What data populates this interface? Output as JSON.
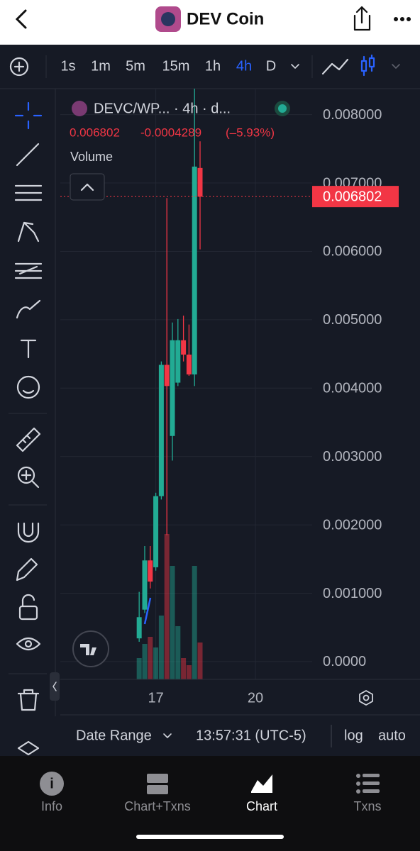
{
  "header": {
    "title": "DEV Coin"
  },
  "toolbar": {
    "intervals": [
      "1s",
      "1m",
      "5m",
      "15m",
      "1h",
      "4h",
      "D"
    ],
    "active_interval": 5
  },
  "chart_data": {
    "type": "candlestick",
    "symbol": "DEVC/WP... · 4h · d...",
    "last_price": "0.006802",
    "change": "-0.0004289",
    "change_pct": "(–5.93%)",
    "volume_label": "Volume",
    "x": [
      -12,
      -8,
      -4,
      0,
      4,
      8,
      12,
      16,
      20,
      24,
      28,
      32
    ],
    "open": [
      0.00034,
      0.00076,
      0.00148,
      0.00138,
      0.00242,
      0.00434,
      0.0033,
      0.00408,
      0.0047,
      0.00449,
      0.0042,
      0.00722
    ],
    "high": [
      0.00102,
      0.00169,
      0.00169,
      0.00247,
      0.00439,
      0.00678,
      0.00496,
      0.00501,
      0.00506,
      0.00493,
      0.00838,
      0.00761
    ],
    "low": [
      0.00029,
      0.00071,
      0.00107,
      0.00133,
      0.00237,
      0.00185,
      0.00294,
      0.00403,
      0.00439,
      0.00418,
      0.00403,
      0.00603
    ],
    "close": [
      0.00065,
      0.00148,
      0.00117,
      0.00242,
      0.00434,
      0.00403,
      0.0047,
      0.0047,
      0.00449,
      0.0042,
      0.00724,
      0.0068
    ],
    "volume": [
      30,
      50,
      60,
      45,
      90,
      205,
      160,
      75,
      30,
      20,
      160,
      52
    ],
    "up_color": "#22ab94",
    "down_color": "#f23645",
    "xlim": [
      -69,
      113
    ],
    "xticks": [
      {
        "value": 0,
        "label": "17"
      },
      {
        "value": 72,
        "label": "20"
      }
    ],
    "ylim": [
      -0.00026,
      0.00838
    ],
    "yticks": [
      {
        "value": 0.008,
        "label": "0.008000"
      },
      {
        "value": 0.007,
        "label": "0.007000"
      },
      {
        "value": 0.006,
        "label": "0.006000"
      },
      {
        "value": 0.005,
        "label": "0.005000"
      },
      {
        "value": 0.004,
        "label": "0.004000"
      },
      {
        "value": 0.003,
        "label": "0.003000"
      },
      {
        "value": 0.002,
        "label": "0.002000"
      },
      {
        "value": 0.001,
        "label": "0.001000"
      },
      {
        "value": 0,
        "label": "0.0000"
      }
    ],
    "grid": true
  },
  "footer": {
    "date_range": "Date Range",
    "time": "13:57:31 (UTC-5)",
    "log": "log",
    "auto": "auto"
  },
  "tabs": [
    "Info",
    "Chart+Txns",
    "Chart",
    "Txns"
  ],
  "active_tab": 2
}
